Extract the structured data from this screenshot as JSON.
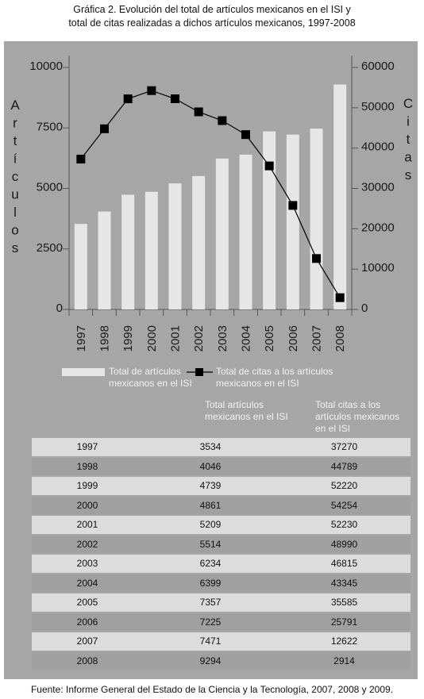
{
  "title_line1": "Gráfica 2. Evolución del total de artículos mexicanos en el ISI y",
  "title_line2": "total de citas realizadas a dichos artículos mexicanos, 1997-2008",
  "chart_data": {
    "type": "bar",
    "categories": [
      "1997",
      "1998",
      "1999",
      "2000",
      "2001",
      "2002",
      "2003",
      "2004",
      "2005",
      "2006",
      "2007",
      "2008"
    ],
    "series": [
      {
        "name": "Total de artículos mexicanos en el ISI",
        "type": "bar",
        "axis": "left",
        "values": [
          3534,
          4046,
          4739,
          4861,
          5209,
          5514,
          6234,
          6399,
          7357,
          7225,
          7471,
          9294
        ]
      },
      {
        "name": "Total de citas a los artículos mexicanos en el ISI",
        "type": "line",
        "axis": "right",
        "values": [
          37270,
          44789,
          52220,
          54254,
          52230,
          48990,
          46815,
          43345,
          35585,
          25791,
          12622,
          2914
        ]
      }
    ],
    "ylabel": "Artículos",
    "y2label": "Citas",
    "ylim": [
      0,
      10000
    ],
    "y2lim": [
      0,
      60000
    ],
    "yticks": [
      "0",
      "2500",
      "5000",
      "7500",
      "10000"
    ],
    "y2ticks": [
      "0",
      "10000",
      "20000",
      "30000",
      "40000",
      "50000",
      "60000"
    ],
    "colors": {
      "bars": "#e6e6e6",
      "line": "#000000",
      "panel": "#a6a6a6"
    },
    "legend_placement": "bottom",
    "grid": false
  },
  "legend": {
    "bars_line1": "Total de artículos",
    "bars_line2": "mexicanos en el ISI",
    "line_line1": "Total de citas a los artículos",
    "line_line2": "mexicanos en el ISI"
  },
  "table": {
    "header_col2_line1": "Total artículos",
    "header_col2_line2": "mexicanos en el ISI",
    "header_col3_line1": "Total citas a los",
    "header_col3_line2": "artículos mexicanos",
    "header_col3_line3": "en el ISI",
    "rows": [
      {
        "year": "1997",
        "articles": "3534",
        "citations": "37270"
      },
      {
        "year": "1998",
        "articles": "4046",
        "citations": "44789"
      },
      {
        "year": "1999",
        "articles": "4739",
        "citations": "52220"
      },
      {
        "year": "2000",
        "articles": "4861",
        "citations": "54254"
      },
      {
        "year": "2001",
        "articles": "5209",
        "citations": "52230"
      },
      {
        "year": "2002",
        "articles": "5514",
        "citations": "48990"
      },
      {
        "year": "2003",
        "articles": "6234",
        "citations": "46815"
      },
      {
        "year": "2004",
        "articles": "6399",
        "citations": "43345"
      },
      {
        "year": "2005",
        "articles": "7357",
        "citations": "35585"
      },
      {
        "year": "2006",
        "articles": "7225",
        "citations": "25791"
      },
      {
        "year": "2007",
        "articles": "7471",
        "citations": "12622"
      },
      {
        "year": "2008",
        "articles": "9294",
        "citations": "2914"
      }
    ]
  },
  "source": "Fuente: Informe General del Estado de la Ciencia y la Tecnología, 2007, 2008 y 2009."
}
